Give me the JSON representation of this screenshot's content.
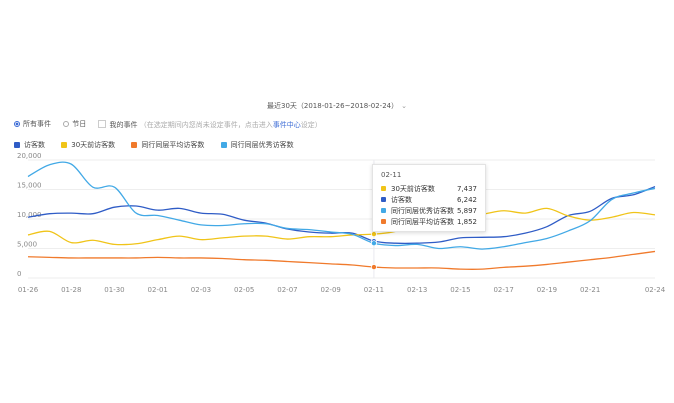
{
  "date_range": "最近30天（2018-01-26~2018-02-24）",
  "filters": {
    "all_events": "所有事件",
    "holidays": "节日",
    "my_events": "我的事件",
    "hint": "（在选定期间内您尚未设定事件，点击进入",
    "event_center": "事件中心",
    "hint_end": "设定）"
  },
  "colors": {
    "visitors": "#2f5cc6",
    "prev30": "#f0c419",
    "peer_avg": "#f07a2c",
    "peer_top": "#42a9e6"
  },
  "chart_data": {
    "type": "line",
    "categories": [
      "01-26",
      "01-27",
      "01-28",
      "01-29",
      "01-30",
      "01-31",
      "02-01",
      "02-02",
      "02-03",
      "02-04",
      "02-05",
      "02-06",
      "02-07",
      "02-08",
      "02-09",
      "02-10",
      "02-11",
      "02-12",
      "02-13",
      "02-14",
      "02-15",
      "02-16",
      "02-17",
      "02-18",
      "02-19",
      "02-20",
      "02-21",
      "02-22",
      "02-23",
      "02-24"
    ],
    "tick_labels": [
      "01-26",
      "01-28",
      "01-30",
      "02-01",
      "02-03",
      "02-05",
      "02-07",
      "02-09",
      "02-11",
      "02-13",
      "02-15",
      "02-17",
      "02-19",
      "02-21",
      "02-24"
    ],
    "y_ticks": [
      "0",
      "5,000",
      "10,000",
      "15,000",
      "20,000"
    ],
    "ylim": [
      0,
      20000
    ],
    "grid": true,
    "legend_position": "top-left",
    "series": [
      {
        "name": "访客数",
        "key": "visitors",
        "values": [
          10300,
          10900,
          11000,
          10900,
          12000,
          12200,
          11500,
          11800,
          11000,
          10800,
          9800,
          9300,
          8300,
          7800,
          7600,
          7600,
          6242,
          5900,
          5900,
          6100,
          6800,
          6900,
          7000,
          7600,
          8700,
          10600,
          11300,
          13500,
          14100,
          15500
        ]
      },
      {
        "name": "30天前访客数",
        "key": "prev30",
        "values": [
          7300,
          7900,
          6000,
          6400,
          5700,
          5800,
          6500,
          7100,
          6500,
          6800,
          7100,
          7100,
          6600,
          7000,
          7000,
          7300,
          7437,
          7900,
          9300,
          10500,
          10400,
          10800,
          11400,
          11000,
          11800,
          10500,
          9800,
          10300,
          11100,
          10700
        ]
      },
      {
        "name": "同行同层平均访客数",
        "key": "peer_avg",
        "values": [
          3600,
          3500,
          3400,
          3400,
          3400,
          3400,
          3500,
          3400,
          3400,
          3300,
          3100,
          3000,
          2800,
          2600,
          2400,
          2200,
          1852,
          1700,
          1700,
          1700,
          1500,
          1500,
          1800,
          2000,
          2300,
          2700,
          3100,
          3500,
          4000,
          4500
        ]
      },
      {
        "name": "同行同层优秀访客数",
        "key": "peer_top",
        "values": [
          17200,
          19200,
          19300,
          15400,
          15400,
          11000,
          10600,
          9800,
          9000,
          8900,
          9200,
          9200,
          8400,
          8200,
          7800,
          7400,
          5897,
          5500,
          5700,
          5000,
          5300,
          4900,
          5300,
          6000,
          6700,
          8000,
          9700,
          13300,
          14400,
          15200
        ]
      }
    ],
    "hover": {
      "date": "02-11",
      "rows": [
        {
          "name": "30天前访客数",
          "key": "prev30",
          "value": "7,437"
        },
        {
          "name": "访客数",
          "key": "visitors",
          "value": "6,242"
        },
        {
          "name": "同行同层优秀访客数",
          "key": "peer_top",
          "value": "5,897"
        },
        {
          "name": "同行同层平均访客数",
          "key": "peer_avg",
          "value": "1,852"
        }
      ]
    }
  }
}
